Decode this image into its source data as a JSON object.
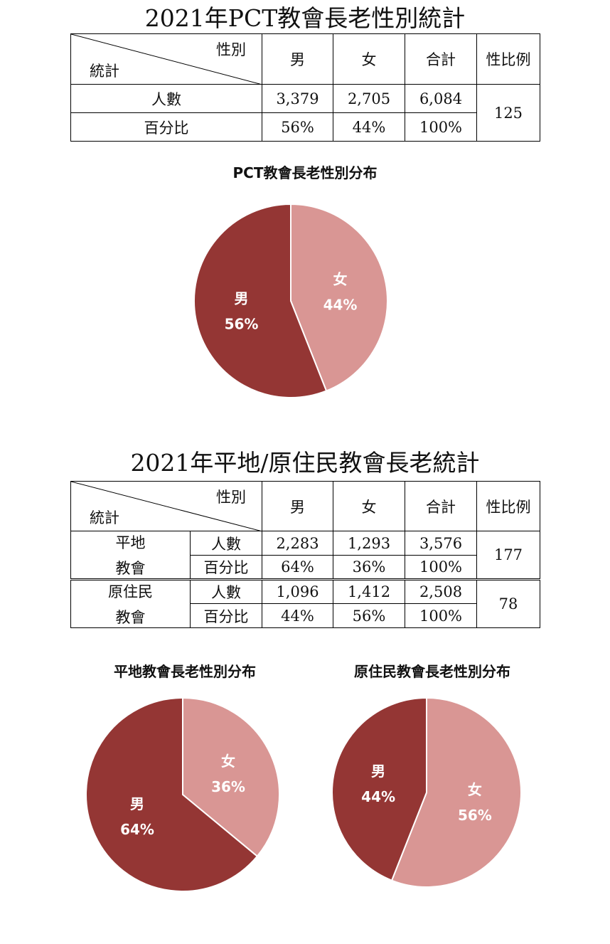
{
  "table1": {
    "title": "2021年PCT教會長老性別統計",
    "header": {
      "corner_top": "性別",
      "corner_bottom": "統計",
      "male": "男",
      "female": "女",
      "total": "合計",
      "ratio": "性比例"
    },
    "rows": [
      {
        "label": "人數",
        "male": "3,379",
        "female": "2,705",
        "total": "6,084"
      },
      {
        "label": "百分比",
        "male": "56%",
        "female": "44%",
        "total": "100%"
      }
    ],
    "ratio": "125"
  },
  "table2": {
    "title": "2021年平地/原住民教會長老統計",
    "header": {
      "corner_top": "性別",
      "corner_bottom": "統計",
      "male": "男",
      "female": "女",
      "total": "合計",
      "ratio": "性比例"
    },
    "groups": [
      {
        "name_line1": "平地",
        "name_line2": "教會",
        "rows": [
          {
            "label": "人數",
            "male": "2,283",
            "female": "1,293",
            "total": "3,576"
          },
          {
            "label": "百分比",
            "male": "64%",
            "female": "36%",
            "total": "100%"
          }
        ],
        "ratio": "177"
      },
      {
        "name_line1": "原住民",
        "name_line2": "教會",
        "rows": [
          {
            "label": "人數",
            "male": "1,096",
            "female": "1,412",
            "total": "2,508"
          },
          {
            "label": "百分比",
            "male": "44%",
            "female": "56%",
            "total": "100%"
          }
        ],
        "ratio": "78"
      }
    ]
  },
  "colors": {
    "male": "#943634",
    "female": "#d99694",
    "border": "#ffffff"
  },
  "chart_data": [
    {
      "type": "pie",
      "title": "PCT教會長老性別分布",
      "categories": [
        "男",
        "女"
      ],
      "values": [
        56,
        44
      ],
      "labels": [
        "56%",
        "44%"
      ]
    },
    {
      "type": "pie",
      "title": "平地教會長老性別分布",
      "categories": [
        "男",
        "女"
      ],
      "values": [
        64,
        36
      ],
      "labels": [
        "64%",
        "36%"
      ]
    },
    {
      "type": "pie",
      "title": "原住民教會長老性別分布",
      "categories": [
        "男",
        "女"
      ],
      "values": [
        44,
        56
      ],
      "labels": [
        "44%",
        "56%"
      ]
    }
  ]
}
